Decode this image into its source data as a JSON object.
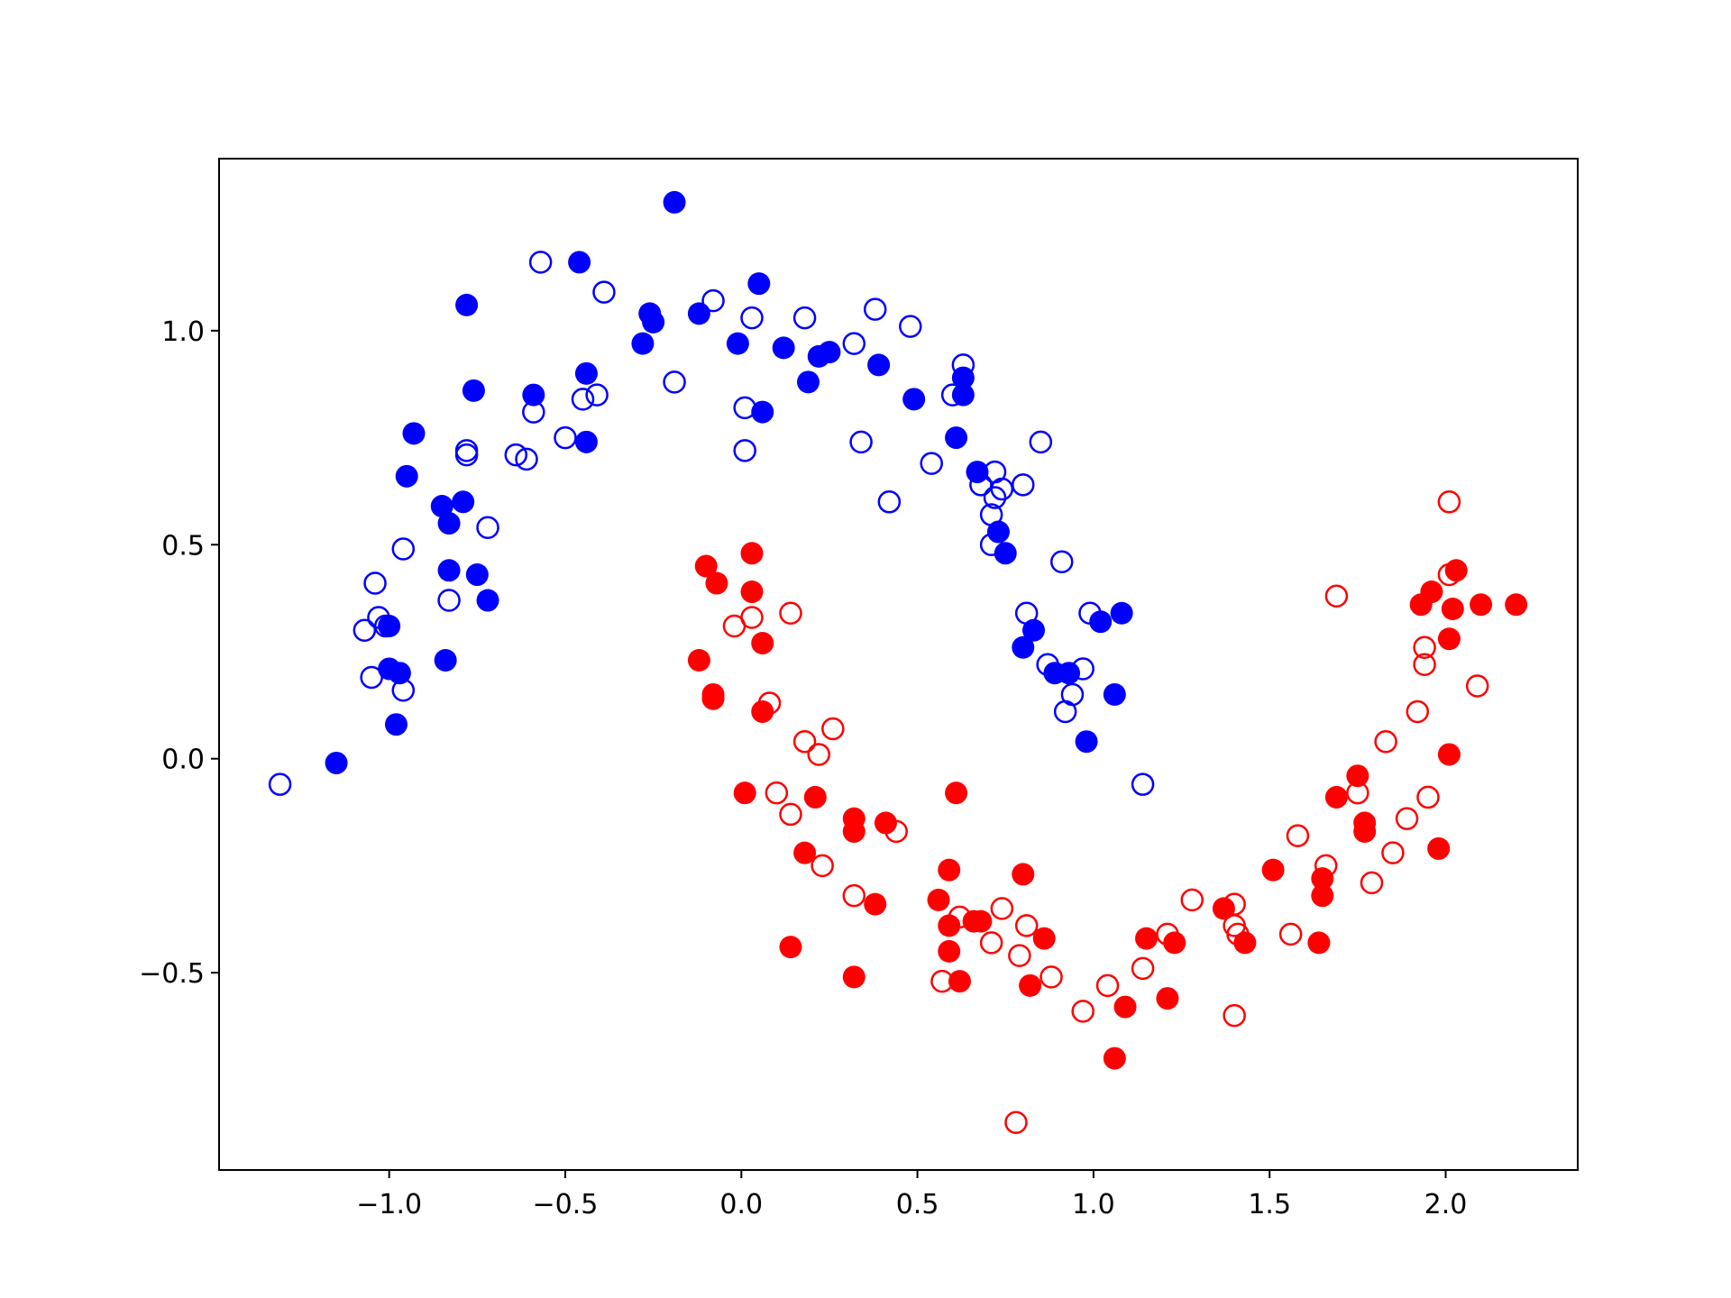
{
  "chart_data": {
    "type": "scatter",
    "xlim": [
      -1.483,
      2.375
    ],
    "ylim": [
      -0.961,
      1.402
    ],
    "xticks": [
      {
        "value": -1.0,
        "label": "−1.0"
      },
      {
        "value": -0.5,
        "label": "−0.5"
      },
      {
        "value": 0.0,
        "label": "0.0"
      },
      0.5,
      {
        "value": 1.0,
        "label": "1.0"
      },
      1.5,
      {
        "value": 2.0,
        "label": "2.0"
      }
    ],
    "yticks": [
      {
        "value": -0.5,
        "label": "−0.5"
      },
      {
        "value": 0.0,
        "label": "0.0"
      },
      0.5,
      {
        "value": 1.0,
        "label": "1.0"
      }
    ],
    "series": [
      {
        "color": "#0000ff",
        "marker": "filled",
        "x": [
          -0.19,
          -0.46,
          0.05,
          -0.78,
          -0.26,
          -0.25,
          -0.12,
          -0.28,
          -0.01,
          0.12,
          0.22,
          0.25,
          0.39,
          0.19,
          -0.76,
          -0.44,
          -0.59,
          0.06,
          0.49,
          0.63,
          0.63,
          0.61,
          -0.44,
          -0.93,
          -0.95,
          -0.85,
          -0.79,
          -0.83,
          0.67,
          0.73,
          0.75,
          -0.83,
          -0.75,
          -0.72,
          1.08,
          1.02,
          -1.0,
          0.83,
          0.8,
          -0.84,
          -1.0,
          -0.97,
          0.89,
          0.93,
          1.06,
          -0.98,
          0.98,
          -1.15
        ],
        "values": [
          1.3,
          1.16,
          1.11,
          1.06,
          1.04,
          1.02,
          1.04,
          0.97,
          0.97,
          0.96,
          0.94,
          0.95,
          0.92,
          0.88,
          0.86,
          0.9,
          0.85,
          0.81,
          0.84,
          0.89,
          0.85,
          0.75,
          0.74,
          0.76,
          0.66,
          0.59,
          0.6,
          0.55,
          0.67,
          0.53,
          0.48,
          0.44,
          0.43,
          0.37,
          0.34,
          0.32,
          0.31,
          0.3,
          0.26,
          0.23,
          0.21,
          0.2,
          0.2,
          0.2,
          0.15,
          0.08,
          0.04,
          -0.01
        ]
      },
      {
        "color": "#0000ff",
        "marker": "open",
        "x": [
          -0.57,
          -0.39,
          -0.08,
          0.03,
          0.18,
          0.38,
          0.48,
          0.32,
          -0.19,
          0.63,
          -0.41,
          -0.45,
          0.6,
          0.01,
          -0.59,
          -0.5,
          0.34,
          0.85,
          -0.78,
          -0.78,
          -0.64,
          -0.61,
          0.01,
          0.54,
          0.72,
          0.68,
          0.74,
          0.8,
          0.72,
          0.42,
          0.71,
          -0.72,
          0.71,
          -0.96,
          0.91,
          -1.04,
          -0.83,
          0.81,
          0.99,
          -1.03,
          -1.01,
          -1.07,
          0.87,
          0.97,
          -1.05,
          -0.96,
          0.94,
          0.92,
          1.14,
          -1.31
        ],
        "values": [
          1.16,
          1.09,
          1.07,
          1.03,
          1.03,
          1.05,
          1.01,
          0.97,
          0.88,
          0.92,
          0.85,
          0.84,
          0.85,
          0.82,
          0.81,
          0.75,
          0.74,
          0.74,
          0.72,
          0.71,
          0.71,
          0.7,
          0.72,
          0.69,
          0.67,
          0.64,
          0.63,
          0.64,
          0.61,
          0.6,
          0.57,
          0.54,
          0.5,
          0.49,
          0.46,
          0.41,
          0.37,
          0.34,
          0.34,
          0.33,
          0.31,
          0.3,
          0.22,
          0.21,
          0.19,
          0.16,
          0.15,
          0.11,
          -0.06,
          -0.06
        ]
      },
      {
        "color": "#ff0000",
        "marker": "filled",
        "x": [
          0.03,
          -0.1,
          -0.07,
          0.03,
          0.06,
          -0.12,
          -0.08,
          -0.08,
          0.06,
          0.01,
          0.21,
          0.61,
          0.32,
          0.32,
          0.41,
          0.18,
          0.59,
          0.8,
          0.38,
          0.56,
          0.59,
          0.66,
          0.68,
          0.86,
          0.14,
          0.59,
          0.62,
          0.32,
          0.82,
          1.09,
          1.06,
          1.21,
          1.15,
          1.23,
          1.37,
          1.43,
          1.51,
          1.65,
          1.65,
          1.64,
          1.69,
          1.75,
          1.77,
          1.77,
          1.98,
          2.01,
          2.01,
          2.02,
          1.93,
          1.96,
          2.03,
          2.1,
          2.2
        ],
        "values": [
          0.48,
          0.45,
          0.41,
          0.39,
          0.27,
          0.23,
          0.15,
          0.14,
          0.11,
          -0.08,
          -0.09,
          -0.08,
          -0.14,
          -0.17,
          -0.15,
          -0.22,
          -0.26,
          -0.27,
          -0.34,
          -0.33,
          -0.39,
          -0.38,
          -0.38,
          -0.42,
          -0.44,
          -0.45,
          -0.52,
          -0.51,
          -0.53,
          -0.58,
          -0.7,
          -0.56,
          -0.42,
          -0.43,
          -0.35,
          -0.43,
          -0.26,
          -0.28,
          -0.32,
          -0.43,
          -0.09,
          -0.04,
          -0.15,
          -0.17,
          -0.21,
          0.01,
          0.28,
          0.35,
          0.36,
          0.39,
          0.44,
          0.36,
          0.36
        ]
      },
      {
        "color": "#ff0000",
        "marker": "open",
        "x": [
          2.01,
          1.69,
          2.01,
          0.14,
          0.03,
          -0.02,
          1.94,
          1.94,
          2.09,
          1.92,
          0.08,
          0.26,
          0.18,
          0.22,
          1.83,
          0.1,
          1.75,
          1.95,
          0.14,
          0.44,
          1.58,
          1.89,
          0.23,
          1.66,
          1.85,
          1.79,
          0.32,
          1.28,
          0.74,
          1.4,
          0.62,
          0.81,
          1.4,
          1.41,
          1.56,
          1.21,
          0.71,
          1.14,
          0.79,
          0.57,
          0.88,
          1.04,
          0.97,
          1.4,
          0.78
        ],
        "values": [
          0.6,
          0.38,
          0.43,
          0.34,
          0.33,
          0.31,
          0.26,
          0.22,
          0.17,
          0.11,
          0.13,
          0.07,
          0.04,
          0.01,
          0.04,
          -0.08,
          -0.08,
          -0.09,
          -0.13,
          -0.17,
          -0.18,
          -0.14,
          -0.25,
          -0.25,
          -0.22,
          -0.29,
          -0.32,
          -0.33,
          -0.35,
          -0.34,
          -0.37,
          -0.39,
          -0.39,
          -0.41,
          -0.41,
          -0.41,
          -0.43,
          -0.49,
          -0.46,
          -0.52,
          -0.51,
          -0.53,
          -0.59,
          -0.6,
          -0.85
        ]
      }
    ]
  }
}
